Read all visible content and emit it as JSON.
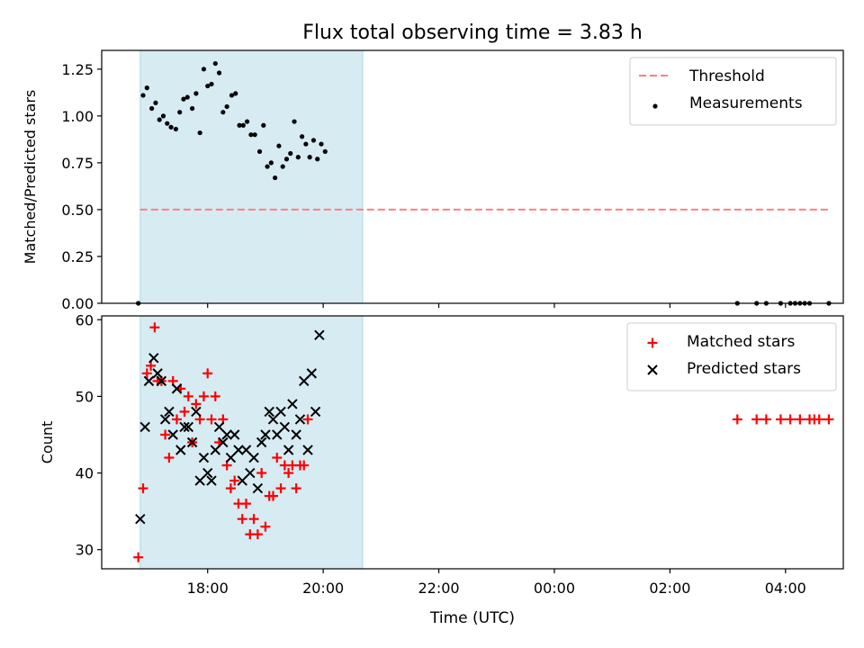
{
  "figure": {
    "title": "Flux total observing time = 3.83 h",
    "xlabel": "Time (UTC)"
  },
  "chart_data": [
    {
      "type": "scatter",
      "ylabel": "Matched/Predicted stars",
      "ylim": [
        0,
        1.35
      ],
      "yticks": [
        0.0,
        0.25,
        0.5,
        0.75,
        1.0,
        1.25
      ],
      "ytick_labels": [
        "0.00",
        "0.25",
        "0.50",
        "0.75",
        "1.00",
        "1.25"
      ],
      "xlim": [
        "16:10",
        "05:00"
      ],
      "xticks": [
        "18:00",
        "20:00",
        "22:00",
        "00:00",
        "02:00",
        "04:00"
      ],
      "observing_window": [
        "16:50",
        "20:41"
      ],
      "legend_position": "top-right",
      "threshold": {
        "name": "Threshold",
        "value": 0.5,
        "x_range": [
          "16:50",
          "04:45"
        ],
        "color": "#ff7f7f"
      },
      "series": [
        {
          "name": "Measurements",
          "marker": "dot",
          "color": "#000000",
          "points": [
            [
              "16:48",
              0.0
            ],
            [
              "16:53",
              1.11
            ],
            [
              "16:57",
              1.15
            ],
            [
              "17:02",
              1.04
            ],
            [
              "17:06",
              1.07
            ],
            [
              "17:10",
              0.98
            ],
            [
              "17:14",
              1.0
            ],
            [
              "17:18",
              0.96
            ],
            [
              "17:22",
              0.94
            ],
            [
              "17:27",
              0.93
            ],
            [
              "17:31",
              1.02
            ],
            [
              "17:35",
              1.09
            ],
            [
              "17:39",
              1.1
            ],
            [
              "17:44",
              1.04
            ],
            [
              "17:48",
              1.12
            ],
            [
              "17:52",
              0.91
            ],
            [
              "17:56",
              1.25
            ],
            [
              "18:00",
              1.16
            ],
            [
              "18:04",
              1.17
            ],
            [
              "18:08",
              1.28
            ],
            [
              "18:12",
              1.23
            ],
            [
              "18:16",
              1.02
            ],
            [
              "18:20",
              1.05
            ],
            [
              "18:25",
              1.11
            ],
            [
              "18:29",
              1.12
            ],
            [
              "18:33",
              0.95
            ],
            [
              "18:37",
              0.95
            ],
            [
              "18:41",
              0.97
            ],
            [
              "18:45",
              0.9
            ],
            [
              "18:49",
              0.9
            ],
            [
              "18:54",
              0.81
            ],
            [
              "18:58",
              0.95
            ],
            [
              "19:02",
              0.73
            ],
            [
              "19:06",
              0.75
            ],
            [
              "19:10",
              0.67
            ],
            [
              "19:14",
              0.84
            ],
            [
              "19:18",
              0.73
            ],
            [
              "19:22",
              0.77
            ],
            [
              "19:26",
              0.8
            ],
            [
              "19:30",
              0.97
            ],
            [
              "19:34",
              0.78
            ],
            [
              "19:38",
              0.89
            ],
            [
              "19:42",
              0.85
            ],
            [
              "19:46",
              0.78
            ],
            [
              "19:50",
              0.87
            ],
            [
              "19:54",
              0.77
            ],
            [
              "19:58",
              0.85
            ],
            [
              "20:02",
              0.81
            ],
            [
              "03:10",
              0.0
            ],
            [
              "03:30",
              0.0
            ],
            [
              "03:40",
              0.0
            ],
            [
              "03:55",
              0.0
            ],
            [
              "04:05",
              0.0
            ],
            [
              "04:10",
              0.0
            ],
            [
              "04:15",
              0.0
            ],
            [
              "04:20",
              0.0
            ],
            [
              "04:25",
              0.0
            ],
            [
              "04:45",
              0.0
            ]
          ]
        }
      ]
    },
    {
      "type": "scatter",
      "ylabel": "Count",
      "ylim": [
        27.5,
        60.5
      ],
      "yticks": [
        30,
        40,
        50,
        60
      ],
      "ytick_labels": [
        "30",
        "40",
        "50",
        "60"
      ],
      "xlim": [
        "16:10",
        "05:00"
      ],
      "xticks": [
        "18:00",
        "20:00",
        "22:00",
        "00:00",
        "02:00",
        "04:00"
      ],
      "xtick_labels": [
        "18:00",
        "20:00",
        "22:00",
        "00:00",
        "02:00",
        "04:00"
      ],
      "observing_window": [
        "16:50",
        "20:41"
      ],
      "legend_position": "top-right",
      "series": [
        {
          "name": "Matched stars",
          "marker": "plus",
          "color": "#ff0000",
          "points": [
            [
              "16:48",
              29
            ],
            [
              "16:53",
              38
            ],
            [
              "16:57",
              53
            ],
            [
              "17:01",
              54
            ],
            [
              "17:05",
              59
            ],
            [
              "17:08",
              52
            ],
            [
              "17:12",
              52
            ],
            [
              "17:16",
              45
            ],
            [
              "17:20",
              42
            ],
            [
              "17:24",
              52
            ],
            [
              "17:28",
              47
            ],
            [
              "17:32",
              51
            ],
            [
              "17:36",
              48
            ],
            [
              "17:40",
              50
            ],
            [
              "17:44",
              44
            ],
            [
              "17:48",
              49
            ],
            [
              "17:52",
              47
            ],
            [
              "17:56",
              50
            ],
            [
              "18:00",
              53
            ],
            [
              "18:04",
              47
            ],
            [
              "18:08",
              50
            ],
            [
              "18:12",
              44
            ],
            [
              "18:16",
              47
            ],
            [
              "18:20",
              41
            ],
            [
              "18:24",
              38
            ],
            [
              "18:28",
              39
            ],
            [
              "18:32",
              36
            ],
            [
              "18:36",
              34
            ],
            [
              "18:40",
              36
            ],
            [
              "18:44",
              32
            ],
            [
              "18:48",
              34
            ],
            [
              "18:52",
              32
            ],
            [
              "18:56",
              40
            ],
            [
              "19:00",
              33
            ],
            [
              "19:04",
              37
            ],
            [
              "19:08",
              37
            ],
            [
              "19:12",
              42
            ],
            [
              "19:16",
              38
            ],
            [
              "19:20",
              41
            ],
            [
              "19:24",
              40
            ],
            [
              "19:28",
              41
            ],
            [
              "19:32",
              38
            ],
            [
              "19:36",
              41
            ],
            [
              "19:40",
              41
            ],
            [
              "19:44",
              47
            ],
            [
              "03:10",
              47
            ],
            [
              "03:30",
              47
            ],
            [
              "03:40",
              47
            ],
            [
              "03:55",
              47
            ],
            [
              "04:05",
              47
            ],
            [
              "04:15",
              47
            ],
            [
              "04:25",
              47
            ],
            [
              "04:30",
              47
            ],
            [
              "04:35",
              47
            ],
            [
              "04:45",
              47
            ]
          ]
        },
        {
          "name": "Predicted stars",
          "marker": "x",
          "color": "#000000",
          "points": [
            [
              "16:50",
              34
            ],
            [
              "16:55",
              46
            ],
            [
              "16:59",
              52
            ],
            [
              "17:04",
              55
            ],
            [
              "17:08",
              53
            ],
            [
              "17:12",
              52
            ],
            [
              "17:16",
              47
            ],
            [
              "17:20",
              48
            ],
            [
              "17:24",
              45
            ],
            [
              "17:28",
              51
            ],
            [
              "17:32",
              43
            ],
            [
              "17:36",
              46
            ],
            [
              "17:40",
              46
            ],
            [
              "17:44",
              44
            ],
            [
              "17:48",
              48
            ],
            [
              "17:52",
              39
            ],
            [
              "17:56",
              42
            ],
            [
              "18:00",
              40
            ],
            [
              "18:04",
              39
            ],
            [
              "18:08",
              43
            ],
            [
              "18:12",
              46
            ],
            [
              "18:16",
              44
            ],
            [
              "18:20",
              45
            ],
            [
              "18:24",
              42
            ],
            [
              "18:28",
              45
            ],
            [
              "18:32",
              43
            ],
            [
              "18:36",
              39
            ],
            [
              "18:40",
              43
            ],
            [
              "18:44",
              40
            ],
            [
              "18:48",
              42
            ],
            [
              "18:52",
              38
            ],
            [
              "18:56",
              44
            ],
            [
              "19:00",
              45
            ],
            [
              "19:04",
              48
            ],
            [
              "19:08",
              47
            ],
            [
              "19:12",
              45
            ],
            [
              "19:16",
              48
            ],
            [
              "19:20",
              46
            ],
            [
              "19:24",
              43
            ],
            [
              "19:28",
              49
            ],
            [
              "19:32",
              45
            ],
            [
              "19:36",
              47
            ],
            [
              "19:40",
              52
            ],
            [
              "19:44",
              43
            ],
            [
              "19:48",
              53
            ],
            [
              "19:52",
              48
            ],
            [
              "19:56",
              58
            ]
          ]
        }
      ]
    }
  ],
  "colors": {
    "window_fill": "#add8e6",
    "axes": "#000000"
  }
}
